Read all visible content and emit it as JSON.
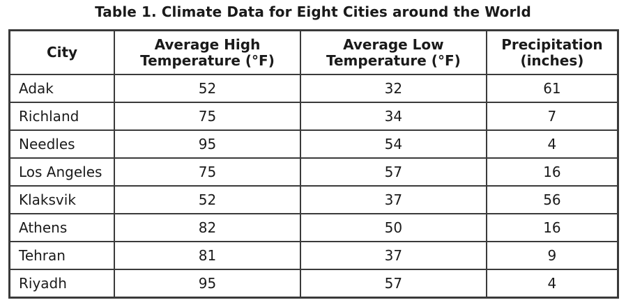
{
  "title": "Table 1. Climate Data for Eight Cities around the World",
  "columns": [
    {
      "line1": "City",
      "line2": ""
    },
    {
      "line1": "Average High",
      "line2": "Temperature (°F)"
    },
    {
      "line1": "Average Low",
      "line2": "Temperature (°F)"
    },
    {
      "line1": "Precipitation",
      "line2": "(inches)"
    }
  ],
  "rows": [
    {
      "city": "Adak",
      "high": "52",
      "low": "32",
      "precip": "61"
    },
    {
      "city": "Richland",
      "high": "75",
      "low": "34",
      "precip": "7"
    },
    {
      "city": "Needles",
      "high": "95",
      "low": "54",
      "precip": "4"
    },
    {
      "city": "Los Angeles",
      "high": "75",
      "low": "57",
      "precip": "16"
    },
    {
      "city": "Klaksvik",
      "high": "52",
      "low": "37",
      "precip": "56"
    },
    {
      "city": "Athens",
      "high": "82",
      "low": "50",
      "precip": "16"
    },
    {
      "city": "Tehran",
      "high": "81",
      "low": "37",
      "precip": "9"
    },
    {
      "city": "Riyadh",
      "high": "95",
      "low": "57",
      "precip": "4"
    }
  ]
}
